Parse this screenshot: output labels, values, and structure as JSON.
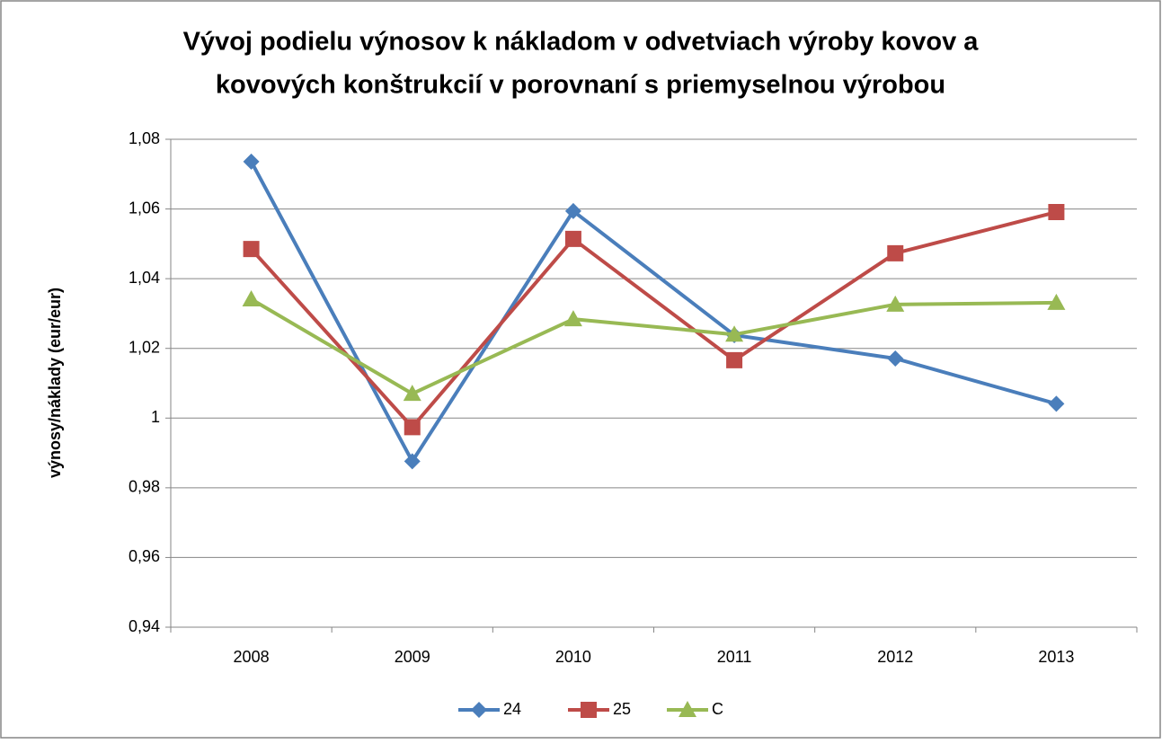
{
  "chart_data": {
    "type": "line",
    "title": [
      "Vývoj podielu výnosov k nákladom v odvetviach výroby kovov a",
      "kovových konštrukcií v porovnaní s priemyselnou výrobou"
    ],
    "y_label": "výnosy/náklady (eur/eur)",
    "categories": [
      "2008",
      "2009",
      "2010",
      "2011",
      "2012",
      "2013"
    ],
    "series": [
      {
        "name": "24",
        "color": "#4a7ebb",
        "marker": "diamond",
        "values": [
          1.0736,
          0.9876,
          1.0594,
          1.0238,
          1.0171,
          1.0041
        ]
      },
      {
        "name": "25",
        "color": "#be4b48",
        "marker": "square",
        "values": [
          1.0485,
          0.9974,
          1.0514,
          1.0166,
          1.0473,
          1.0591
        ]
      },
      {
        "name": "C",
        "color": "#98b954",
        "marker": "triangle",
        "values": [
          1.0341,
          1.007,
          1.0284,
          1.024,
          1.0326,
          1.0331
        ]
      }
    ],
    "ylim": [
      0.94,
      1.08
    ],
    "yticks": [
      {
        "value": 0.94,
        "label": "0,94"
      },
      {
        "value": 0.96,
        "label": "0,96"
      },
      {
        "value": 0.98,
        "label": "0,98"
      },
      1,
      {
        "value": 1.02,
        "label": "1,02"
      },
      {
        "value": 1.04,
        "label": "1,04"
      },
      {
        "value": 1.06,
        "label": "1,06"
      },
      {
        "value": 1.08,
        "label": "1,08"
      }
    ],
    "grid": true,
    "legend": "bottom"
  }
}
